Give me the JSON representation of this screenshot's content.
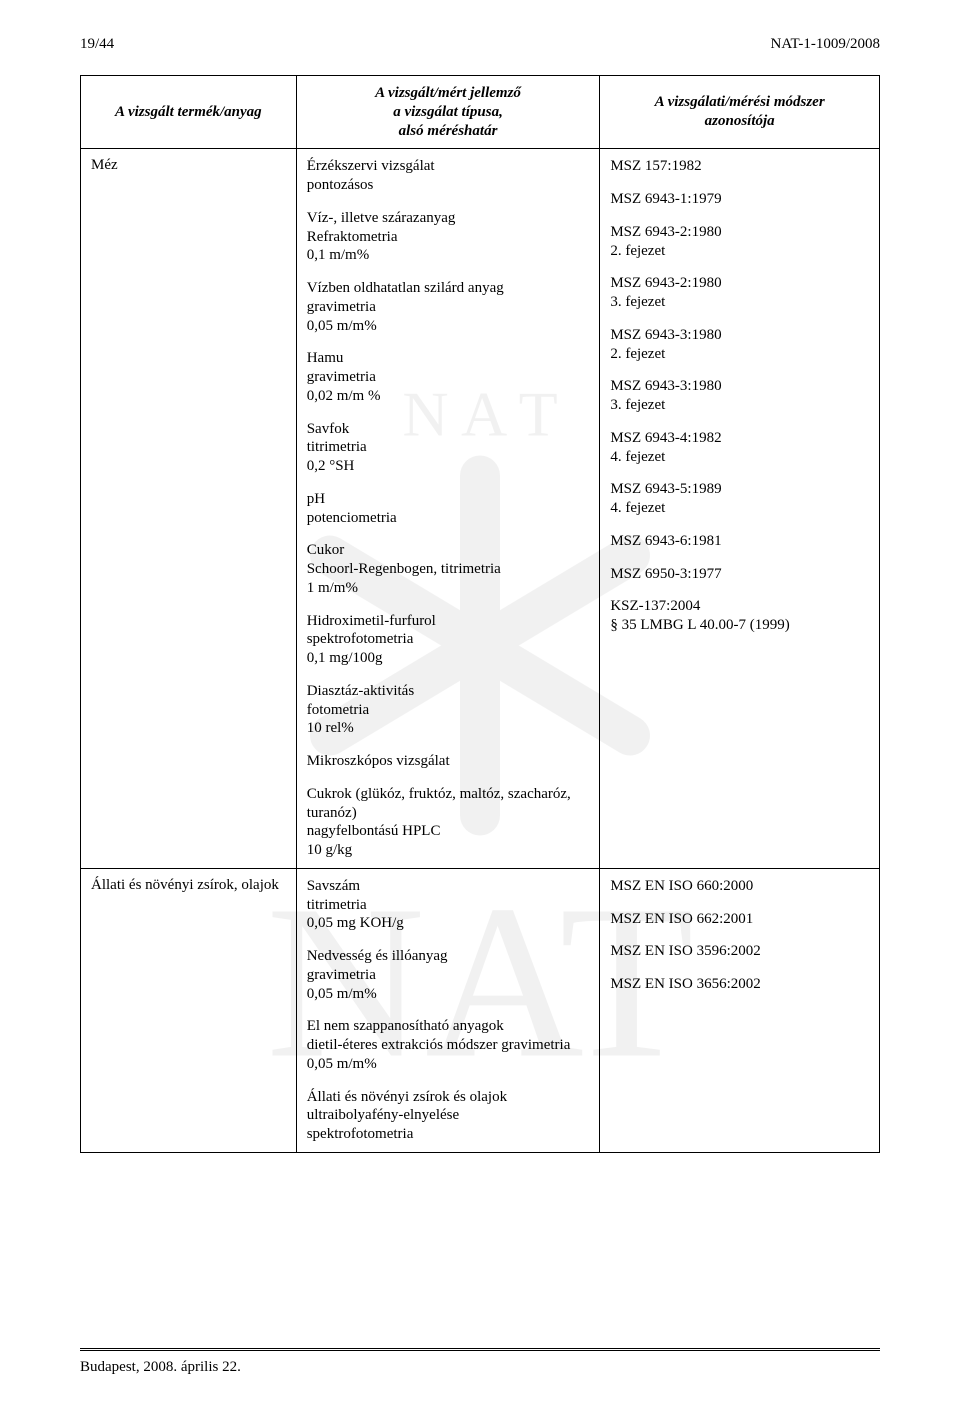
{
  "header": {
    "page_indicator": "19/44",
    "doc_id": "NAT-1-1009/2008"
  },
  "table": {
    "headers": {
      "col1": "A vizsgált termék/anyag",
      "col2_line1": "A vizsgált/mért jellemző",
      "col2_line2": "a vizsgálat típusa,",
      "col2_line3": "alsó méréshatár",
      "col3_line1": "A vizsgálati/mérési módszer",
      "col3_line2": "azonosítója"
    },
    "row1": {
      "left": "Méz",
      "mid": [
        "Érzékszervi vizsgálat\npontozásos",
        "Víz-, illetve szárazanyag\nRefraktometria\n0,1 m/m%",
        "Vízben oldhatatlan szilárd anyag\ngravimetria\n 0,05 m/m%",
        "Hamu\ngravimetria\n 0,02 m/m %",
        "Savfok\ntitrimetria\n0,2 °SH",
        "pH\npotenciometria",
        "Cukor\nSchoorl-Regenbogen, titrimetria\n1 m/m%",
        "Hidroximetil-furfurol\nspektrofotometria\n0,1 mg/100g",
        "Diasztáz-aktivitás\nfotometria\n10 rel%",
        "Mikroszkópos vizsgálat",
        "Cukrok (glükóz, fruktóz, maltóz, szacharóz, turanóz)\nnagyfelbontású HPLC\n10 g/kg"
      ],
      "right": [
        " MSZ 157:1982",
        "MSZ 6943-1:1979",
        "MSZ 6943-2:1980\n2. fejezet",
        "MSZ 6943-2:1980\n3. fejezet",
        "MSZ 6943-3:1980\n2. fejezet",
        "MSZ 6943-3:1980\n3. fejezet",
        "MSZ 6943-4:1982\n4. fejezet",
        "MSZ 6943-5:1989\n4. fejezet",
        " MSZ 6943-6:1981",
        " MSZ 6950-3:1977",
        "KSZ-137:2004\n§ 35 LMBG L 40.00-7 (1999)"
      ]
    },
    "row2": {
      "left": "Állati és növényi zsírok, olajok",
      "mid": [
        "Savszám\ntitrimetria\n0,05 mg KOH/g",
        "Nedvesség és illóanyag\ngravimetria\n0,05 m/m%",
        "El nem szappanosítható anyagok\ndietil-éteres extrakciós módszer gravimetria\n0,05 m/m%",
        "Állati és növényi zsírok és olajok ultraibolyafény-elnyelése\nspektrofotometria"
      ],
      "right": [
        "MSZ EN ISO 660:2000",
        "MSZ EN ISO 662:2001",
        "MSZ EN ISO 3596:2002",
        "MSZ EN ISO 3656:2002"
      ]
    }
  },
  "footer": {
    "text": "Budapest, 2008. április 22."
  },
  "watermark": {
    "top_text": "N A T",
    "bottom_text": "NAT",
    "snowflake_color": "#d9d9d9",
    "text_color": "#cfcfcf"
  }
}
